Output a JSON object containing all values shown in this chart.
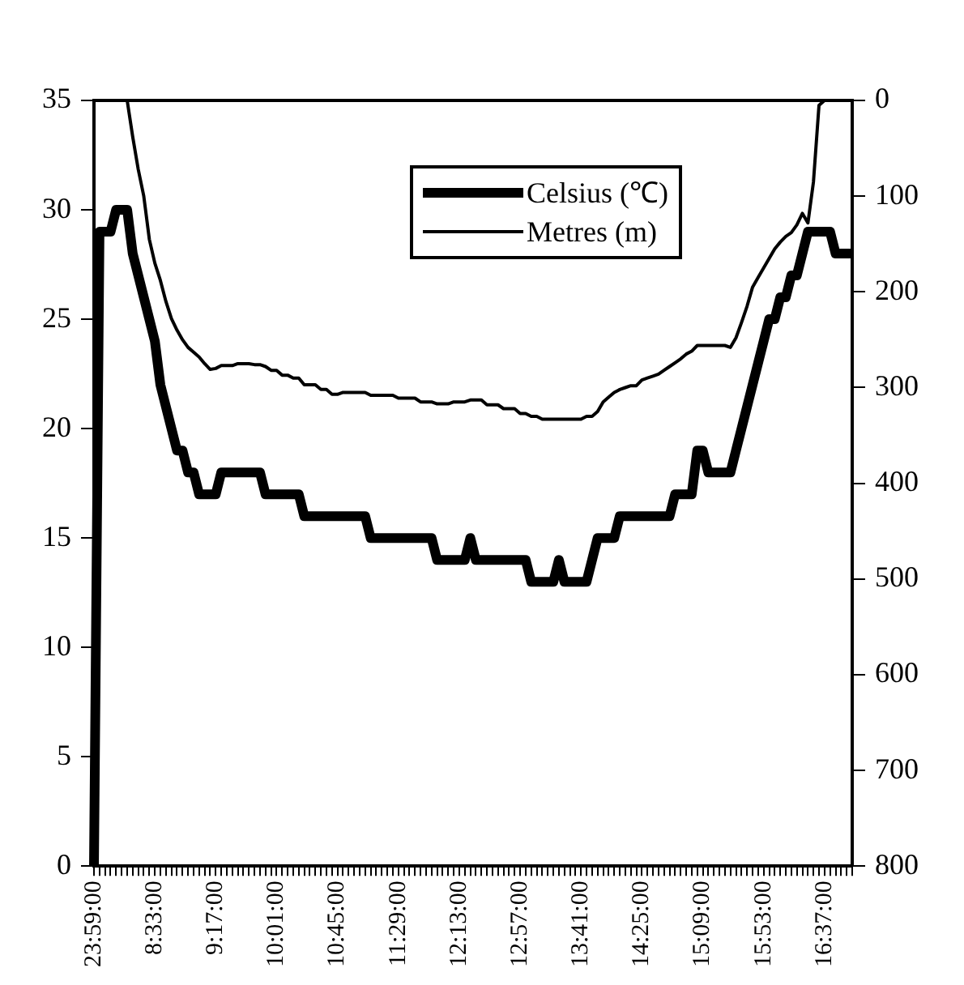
{
  "chart_data": {
    "type": "line",
    "categories": [
      "23:59:00",
      null,
      null,
      null,
      null,
      null,
      null,
      null,
      null,
      null,
      null,
      "8:33:00",
      null,
      null,
      null,
      null,
      null,
      null,
      null,
      null,
      null,
      null,
      "9:17:00",
      null,
      null,
      null,
      null,
      null,
      null,
      null,
      null,
      null,
      null,
      "10:01:00",
      null,
      null,
      null,
      null,
      null,
      null,
      null,
      null,
      null,
      null,
      "10:45:00",
      null,
      null,
      null,
      null,
      null,
      null,
      null,
      null,
      null,
      null,
      "11:29:00",
      null,
      null,
      null,
      null,
      null,
      null,
      null,
      null,
      null,
      null,
      "12:13:00",
      null,
      null,
      null,
      null,
      null,
      null,
      null,
      null,
      null,
      null,
      "12:57:00",
      null,
      null,
      null,
      null,
      null,
      null,
      null,
      null,
      null,
      null,
      "13:41:00",
      null,
      null,
      null,
      null,
      null,
      null,
      null,
      null,
      null,
      null,
      "14:25:00",
      null,
      null,
      null,
      null,
      null,
      null,
      null,
      null,
      null,
      null,
      "15:09:00",
      null,
      null,
      null,
      null,
      null,
      null,
      null,
      null,
      null,
      null,
      "15:53:00",
      null,
      null,
      null,
      null,
      null,
      null,
      null,
      null,
      null,
      null,
      "16:37:00",
      null,
      null,
      null,
      null,
      null
    ],
    "series": [
      {
        "name": "Celsius (℃)",
        "color": "#000000",
        "values": [
          0,
          29,
          29,
          29,
          30,
          30,
          30,
          28,
          27,
          26,
          25,
          24,
          22,
          21,
          20,
          19,
          19,
          18,
          18,
          17,
          17,
          17,
          17,
          18,
          18,
          18,
          18,
          18,
          18,
          18,
          18,
          17,
          17,
          17,
          17,
          17,
          17,
          17,
          16,
          16,
          16,
          16,
          16,
          16,
          16,
          16,
          16,
          16,
          16,
          16,
          15,
          15,
          15,
          15,
          15,
          15,
          15,
          15,
          15,
          15,
          15,
          15,
          14,
          14,
          14,
          14,
          14,
          14,
          15,
          14,
          14,
          14,
          14,
          14,
          14,
          14,
          14,
          14,
          14,
          13,
          13,
          13,
          13,
          13,
          14,
          13,
          13,
          13,
          13,
          13,
          14,
          15,
          15,
          15,
          15,
          16,
          16,
          16,
          16,
          16,
          16,
          16,
          16,
          16,
          16,
          17,
          17,
          17,
          17,
          19,
          19,
          18,
          18,
          18,
          18,
          18,
          19,
          20,
          21,
          22,
          23,
          24,
          25,
          25,
          26,
          26,
          27,
          27,
          28,
          29,
          29,
          29,
          29,
          29,
          28,
          28,
          28,
          28
        ]
      },
      {
        "name": "Metres (m)",
        "color": "#000000",
        "axis": "y2",
        "values": [
          0,
          0,
          0,
          0,
          0,
          0,
          0,
          38,
          72,
          100,
          145,
          170,
          188,
          210,
          228,
          240,
          250,
          258,
          263,
          268,
          275,
          281,
          280,
          277,
          277,
          277,
          275,
          275,
          275,
          276,
          276,
          278,
          282,
          282,
          287,
          287,
          290,
          290,
          297,
          297,
          297,
          302,
          302,
          307,
          307,
          305,
          305,
          305,
          305,
          305,
          308,
          308,
          308,
          308,
          308,
          311,
          311,
          311,
          311,
          315,
          315,
          315,
          317,
          317,
          317,
          315,
          315,
          315,
          313,
          313,
          313,
          318,
          318,
          318,
          322,
          322,
          322,
          327,
          327,
          330,
          330,
          333,
          333,
          333,
          333,
          333,
          333,
          333,
          333,
          330,
          330,
          325,
          315,
          310,
          305,
          302,
          300,
          298,
          298,
          292,
          290,
          288,
          286,
          282,
          278,
          274,
          270,
          265,
          262,
          256,
          256,
          256,
          256,
          256,
          256,
          258,
          248,
          232,
          215,
          195,
          185,
          175,
          165,
          155,
          148,
          142,
          138,
          130,
          118,
          128,
          85,
          5,
          0,
          0,
          0,
          0,
          0,
          0
        ]
      }
    ],
    "ylim": [
      0,
      35
    ],
    "yticks": [
      0,
      5,
      10,
      15,
      20,
      25,
      30,
      35
    ],
    "y2lim": [
      800,
      0
    ],
    "y2ticks": [
      0,
      100,
      200,
      300,
      400,
      500,
      600,
      700,
      800
    ],
    "grid": false,
    "legend": "top",
    "marker": "none",
    "line_style": "solid"
  }
}
